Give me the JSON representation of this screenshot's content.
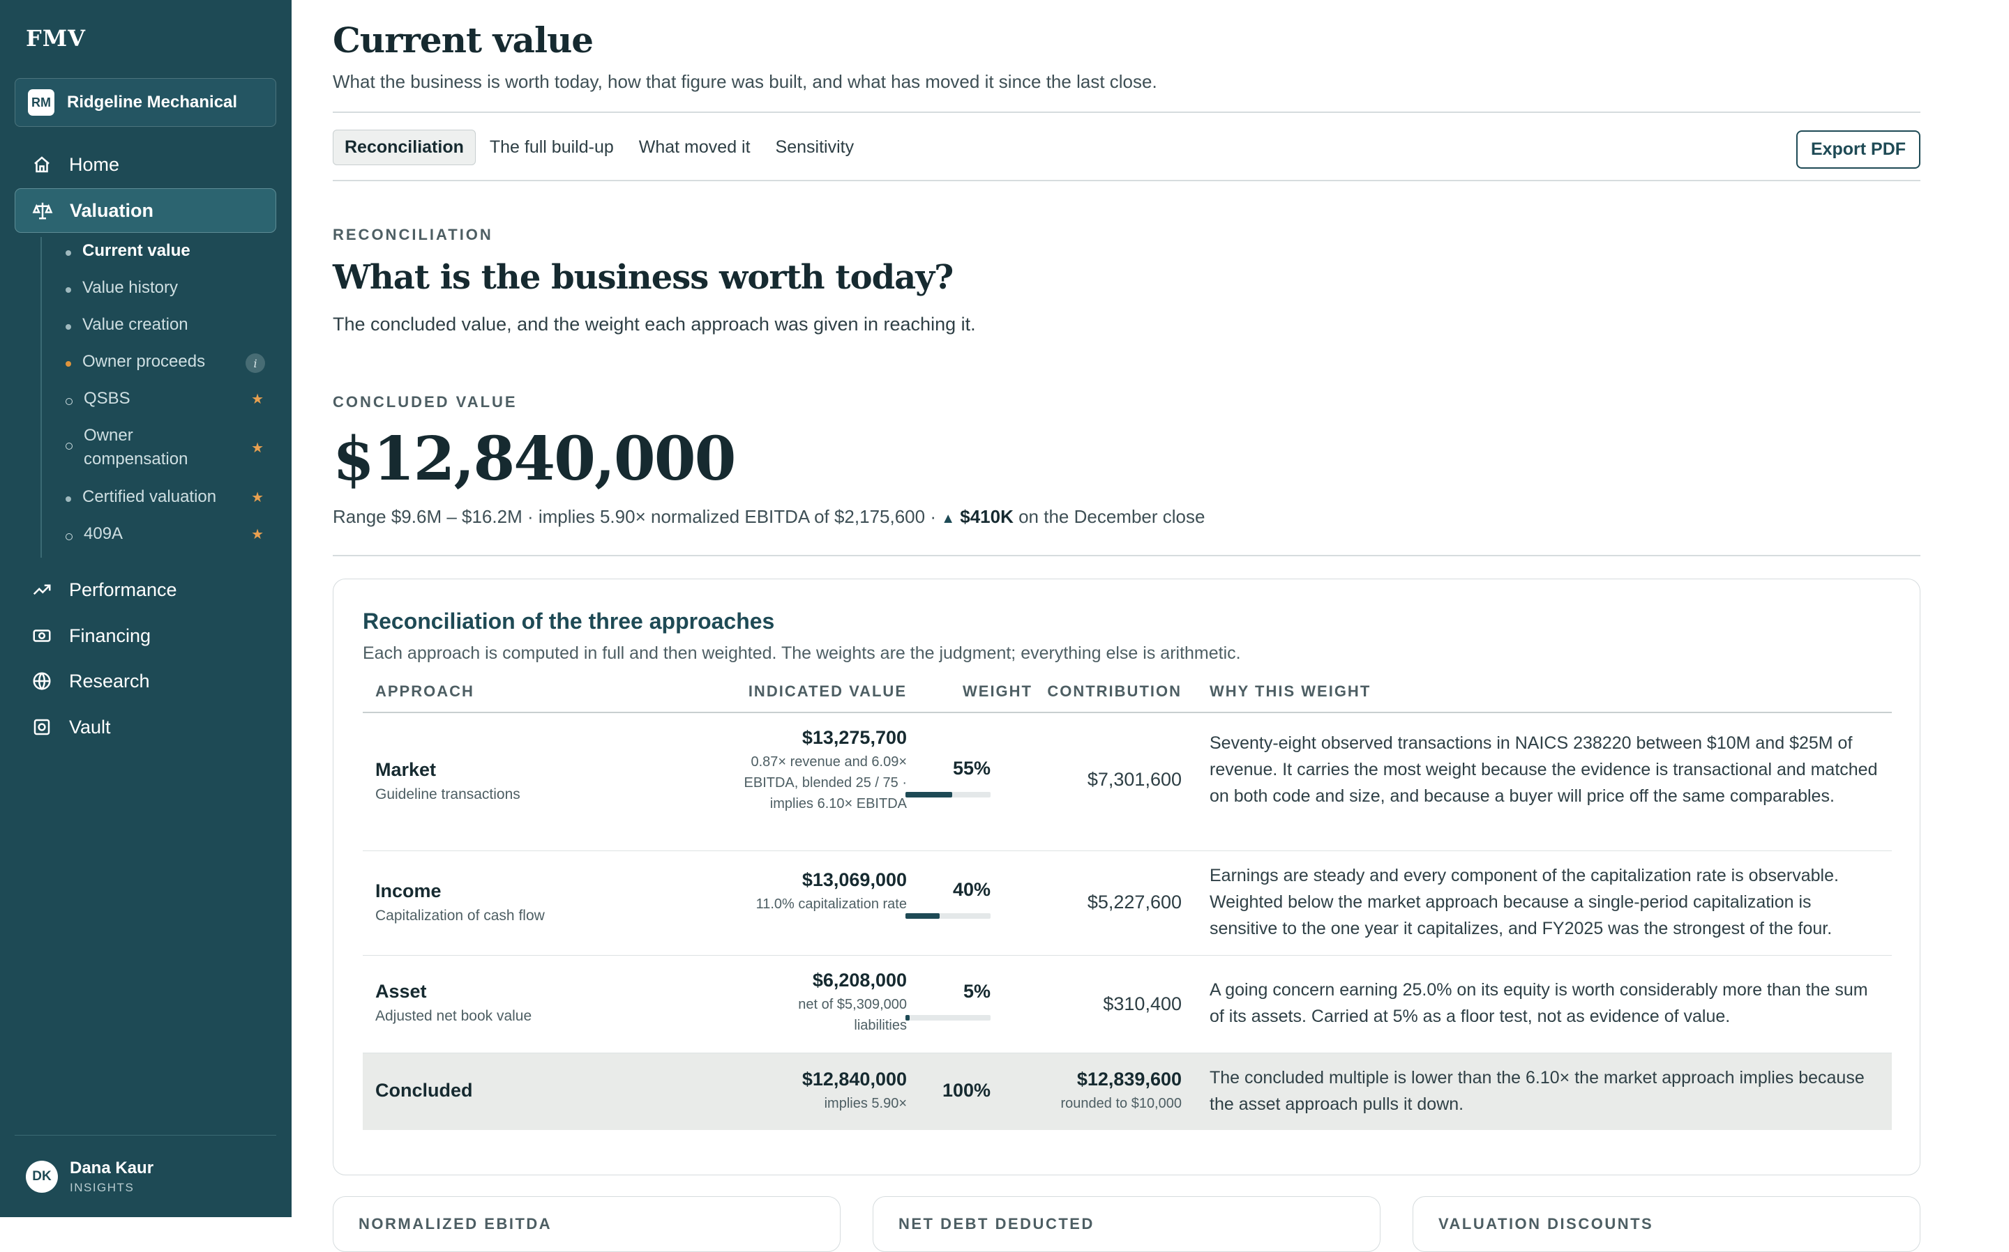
{
  "sidebar": {
    "brand": "FMV",
    "company": {
      "initials": "RM",
      "name": "Ridgeline Mechanical"
    },
    "nav": {
      "home": "Home",
      "valuation": "Valuation",
      "performance": "Performance",
      "financing": "Financing",
      "research": "Research",
      "vault": "Vault"
    },
    "subnav": [
      {
        "label": "Current value"
      },
      {
        "label": "Value history"
      },
      {
        "label": "Value creation"
      },
      {
        "label": "Owner proceeds",
        "badge": "i"
      },
      {
        "label": "QSBS",
        "badge": "★"
      },
      {
        "label": "Owner compensation",
        "badge": "★"
      },
      {
        "label": "Certified valuation",
        "badge": "★"
      },
      {
        "label": "409A",
        "badge": "★"
      }
    ],
    "user": {
      "initials": "DK",
      "name": "Dana Kaur",
      "role": "INSIGHTS"
    }
  },
  "header": {
    "title": "Current value",
    "subtitle": "What the business is worth today, how that figure was built, and what has moved it since the last close.",
    "tabs": [
      "Reconciliation",
      "The full build-up",
      "What moved it",
      "Sensitivity"
    ],
    "export_label": "Export PDF"
  },
  "section": {
    "eyebrow": "RECONCILIATION",
    "title": "What is the business worth today?",
    "subtitle": "The concluded value, and the weight each approach was given in reaching it.",
    "concluded_eyebrow": "CONCLUDED VALUE",
    "concluded_value": "$12,840,000",
    "range_text": "Range $9.6M – $16.2M · implies 5.90× normalized EBITDA of $2,175,600 · ",
    "change_arrow": "▲",
    "change_value": "$410K",
    "change_text": " on the December close"
  },
  "card": {
    "title": "Reconciliation of the three approaches",
    "subtitle": "Each approach is computed in full and then weighted. The weights are the judgment; everything else is arithmetic.",
    "headers": {
      "approach": "APPROACH",
      "indicated": "INDICATED VALUE",
      "weight": "WEIGHT",
      "contribution": "CONTRIBUTION",
      "why": "WHY THIS WEIGHT"
    },
    "rows": [
      {
        "name": "Market",
        "method": "Guideline transactions",
        "value": "$13,275,700",
        "note": "0.87× revenue and 6.09× EBITDA, blended 25 / 75 · implies 6.10× EBITDA",
        "weight": "55%",
        "weight_fraction": 0.55,
        "contribution": "$7,301,600",
        "why": "Seventy-eight observed transactions in NAICS 238220 between $10M and $25M of revenue. It carries the most weight because the evidence is transactional and matched on both code and size, and because a buyer will price off the same comparables."
      },
      {
        "name": "Income",
        "method": "Capitalization of cash flow",
        "value": "$13,069,000",
        "note": "11.0% capitalization rate",
        "weight": "40%",
        "weight_fraction": 0.4,
        "contribution": "$5,227,600",
        "why": "Earnings are steady and every component of the capitalization rate is observable. Weighted below the market approach because a single-period capitalization is sensitive to the one year it capitalizes, and FY2025 was the strongest of the four."
      },
      {
        "name": "Asset",
        "method": "Adjusted net book value",
        "value": "$6,208,000",
        "note": "net of $5,309,000 liabilities",
        "weight": "5%",
        "weight_fraction": 0.05,
        "contribution": "$310,400",
        "why": "A going concern earning 25.0% on its equity is worth considerably more than the sum of its assets. Carried at 5% as a floor test, not as evidence of value."
      }
    ],
    "concluded": {
      "name": "Concluded",
      "value": "$12,840,000",
      "note": "implies 5.90×",
      "weight": "100%",
      "contribution": "$12,839,600",
      "contribution_note": "rounded to $10,000",
      "why": "The concluded multiple is lower than the 6.10× the market approach implies because the asset approach pulls it down."
    }
  },
  "bottom_cards": [
    "NORMALIZED EBITDA",
    "NET DEBT DEDUCTED",
    "VALUATION DISCOUNTS"
  ]
}
